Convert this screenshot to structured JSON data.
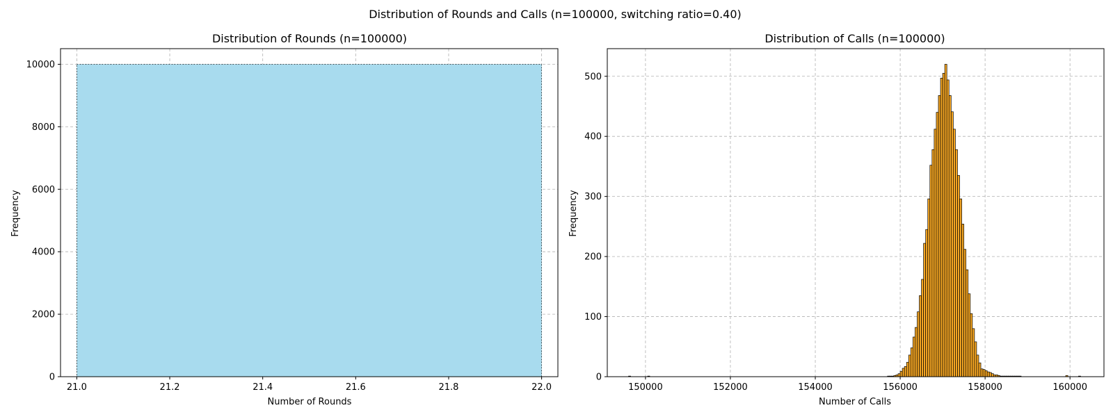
{
  "figure": {
    "suptitle": "Distribution of Rounds and Calls (n=100000, switching ratio=0.40)"
  },
  "colors": {
    "rounds_fill": "#a8dbee",
    "calls_fill": "#f5a623",
    "edge": "#000000",
    "grid": "#b0b0b0"
  },
  "chart_data": [
    {
      "type": "bar",
      "title": "Distribution of Rounds (n=100000)",
      "xlabel": "Number of Rounds",
      "ylabel": "Frequency",
      "xlim": [
        20.965,
        22.035
      ],
      "ylim": [
        0,
        10500
      ],
      "xticks": [
        21.0,
        21.2,
        21.4,
        21.6,
        21.8,
        22.0
      ],
      "xtick_labels": [
        "21.0",
        "21.2",
        "21.4",
        "21.6",
        "21.8",
        "22.0"
      ],
      "yticks": [
        0,
        2000,
        4000,
        6000,
        8000,
        10000
      ],
      "ytick_labels": [
        "0",
        "2000",
        "4000",
        "6000",
        "8000",
        "10000"
      ],
      "grid": true,
      "bins": [
        {
          "x0": 21.0,
          "x1": 22.0,
          "count": 10000
        }
      ]
    },
    {
      "type": "bar",
      "title": "Distribution of Calls (n=100000)",
      "xlabel": "Number of Calls",
      "ylabel": "Frequency",
      "xlim": [
        149100,
        160800
      ],
      "ylim": [
        0,
        546
      ],
      "xticks": [
        150000,
        152000,
        154000,
        156000,
        158000,
        160000
      ],
      "xtick_labels": [
        "150000",
        "152000",
        "154000",
        "156000",
        "158000",
        "160000"
      ],
      "yticks": [
        0,
        100,
        200,
        300,
        400,
        500
      ],
      "ytick_labels": [
        "0",
        "100",
        "200",
        "300",
        "400",
        "500"
      ],
      "grid": true,
      "bin_start": 155700,
      "bin_width": 50,
      "counts": [
        1,
        1,
        1,
        2,
        3,
        5,
        9,
        14,
        17,
        24,
        36,
        48,
        66,
        82,
        108,
        135,
        162,
        222,
        245,
        296,
        352,
        378,
        412,
        440,
        468,
        497,
        505,
        520,
        494,
        468,
        441,
        412,
        378,
        335,
        296,
        254,
        212,
        178,
        138,
        105,
        80,
        58,
        36,
        23,
        13,
        12,
        10,
        8,
        7,
        5,
        3,
        3,
        2,
        1,
        1,
        1,
        1,
        1,
        1,
        1,
        1,
        1,
        1
      ],
      "outliers": [
        {
          "x0": 149600,
          "x1": 149650,
          "count": 1
        },
        {
          "x0": 150050,
          "x1": 150100,
          "count": 1
        },
        {
          "x0": 159900,
          "x1": 159950,
          "count": 2
        },
        {
          "x0": 160200,
          "x1": 160250,
          "count": 1
        }
      ]
    }
  ]
}
